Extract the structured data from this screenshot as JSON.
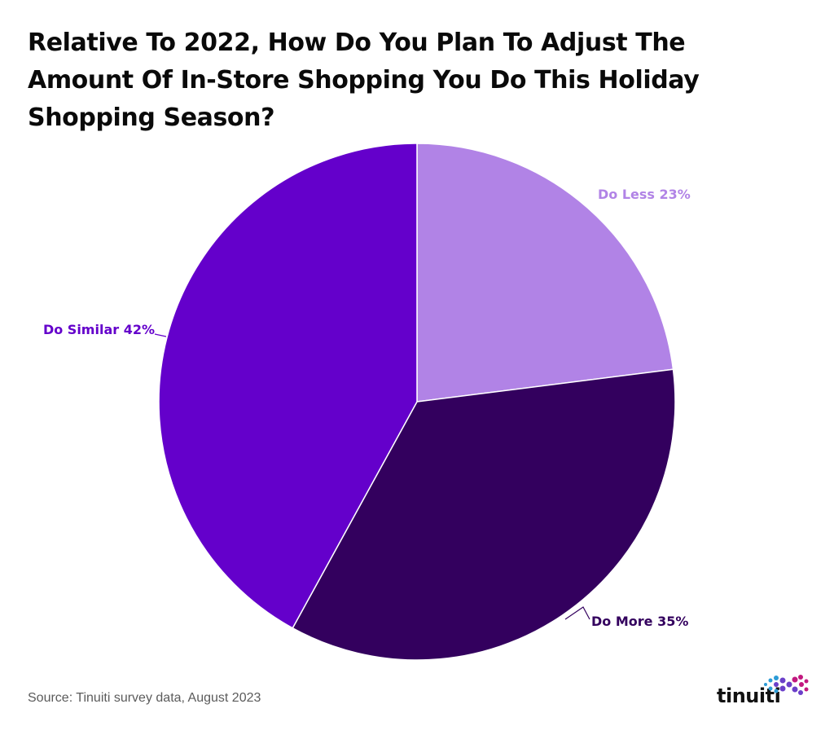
{
  "chart_data": {
    "type": "pie",
    "title": "Relative To 2022, How Do You Plan To Adjust The Amount Of In-Store Shopping You Do This Holiday Shopping Season?",
    "slices": [
      {
        "label": "Do Less 23%",
        "value": 23,
        "color": "#b183e6"
      },
      {
        "label": "Do More 35%",
        "value": 35,
        "color": "#33005e"
      },
      {
        "label": "Do Similar 42%",
        "value": 42,
        "color": "#6400cb"
      }
    ],
    "start_angle_deg": 0,
    "direction": "clockwise"
  },
  "source": "Source: Tinuiti survey data, August 2023",
  "logo": {
    "text": "tinuiti",
    "colors": [
      "#2c9bd6",
      "#6b3fc9",
      "#c2187f"
    ]
  }
}
